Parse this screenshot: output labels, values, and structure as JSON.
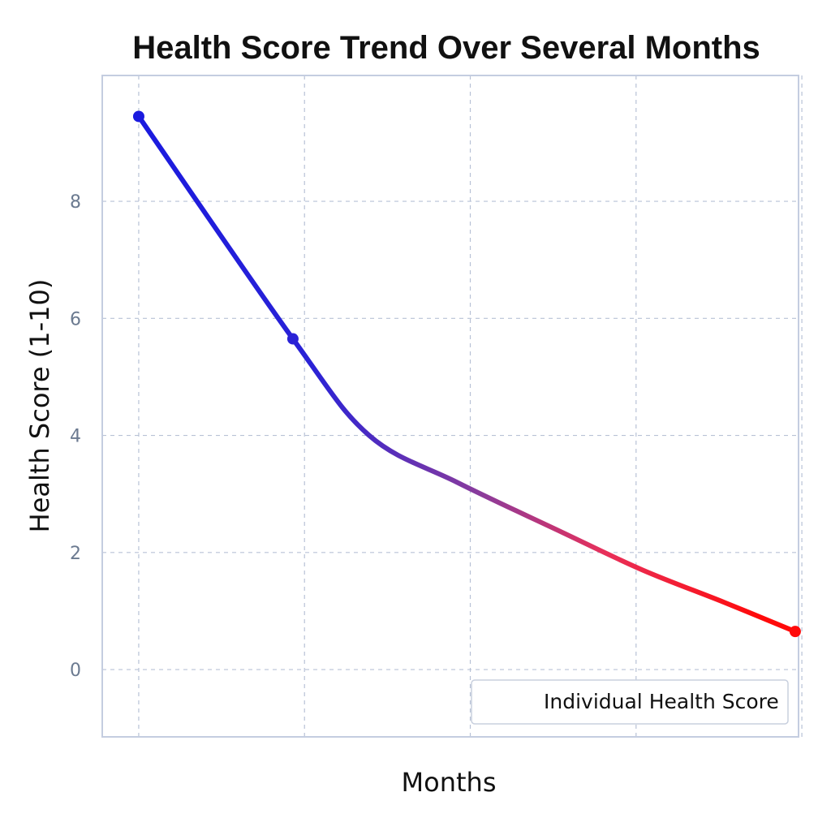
{
  "chart_data": {
    "type": "line",
    "title": "Health Score Trend Over Several Months",
    "xlabel": "Months",
    "ylabel": "Health Score (1-10)",
    "x": [
      0,
      1,
      2,
      3,
      4
    ],
    "xlim": [
      -0.22,
      3.98
    ],
    "ylim": [
      -1.15,
      10.15
    ],
    "yticks": [
      0,
      2,
      4,
      6,
      8
    ],
    "grid": true,
    "legend_position": "bottom-right",
    "series": [
      {
        "name": "Individual Health Score",
        "x": [
          0,
          0.93,
          1.39,
          1.92,
          2.55,
          3.04,
          3.53,
          3.96
        ],
        "values": [
          9.45,
          5.65,
          4.0,
          3.2,
          2.35,
          1.7,
          1.15,
          0.65
        ],
        "marker_x": [
          0,
          0.93,
          3.96
        ],
        "marker_values": [
          9.45,
          5.65,
          0.65
        ],
        "color_start": "#1a1adf",
        "color_end": "#ff0a0a"
      }
    ],
    "colors": {
      "frame": "#c4cde0",
      "grid": "#b8c2d6",
      "tick": "#6b7a90"
    }
  }
}
